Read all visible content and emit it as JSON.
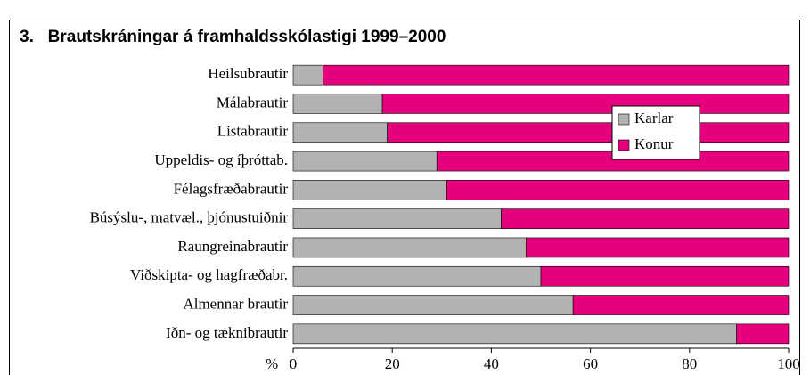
{
  "chart_data": {
    "type": "stacked_barh",
    "title": "3.   Brautskráningar á framhaldsskólastigi 1999–2000",
    "x_label": "%",
    "categories": [
      "Heilsubrautir",
      "Málabrautir",
      "Listabrautir",
      "Uppeldis- og íþróttab.",
      "Félagsfræðabrautir",
      "Búsýslu-, matvæl., þjónustuiðnir",
      "Raungreinabrautir",
      "Viðskipta- og hagfræðabr.",
      "Almennar brautir",
      "Iðn- og tæknibrautir"
    ],
    "series": [
      {
        "name": "Karlar",
        "color": "#b2b2b2",
        "values": [
          6,
          18,
          19,
          29,
          31,
          42,
          47,
          50,
          56.5,
          89.5
        ]
      },
      {
        "name": "Konur",
        "color": "#e6007e",
        "values": [
          94,
          82,
          81,
          71,
          69,
          58,
          53,
          50,
          43.5,
          10.5
        ]
      }
    ],
    "xlim": [
      0,
      100
    ],
    "xticks": [
      0,
      20,
      40,
      60,
      80,
      100
    ],
    "legend": "upper right"
  }
}
